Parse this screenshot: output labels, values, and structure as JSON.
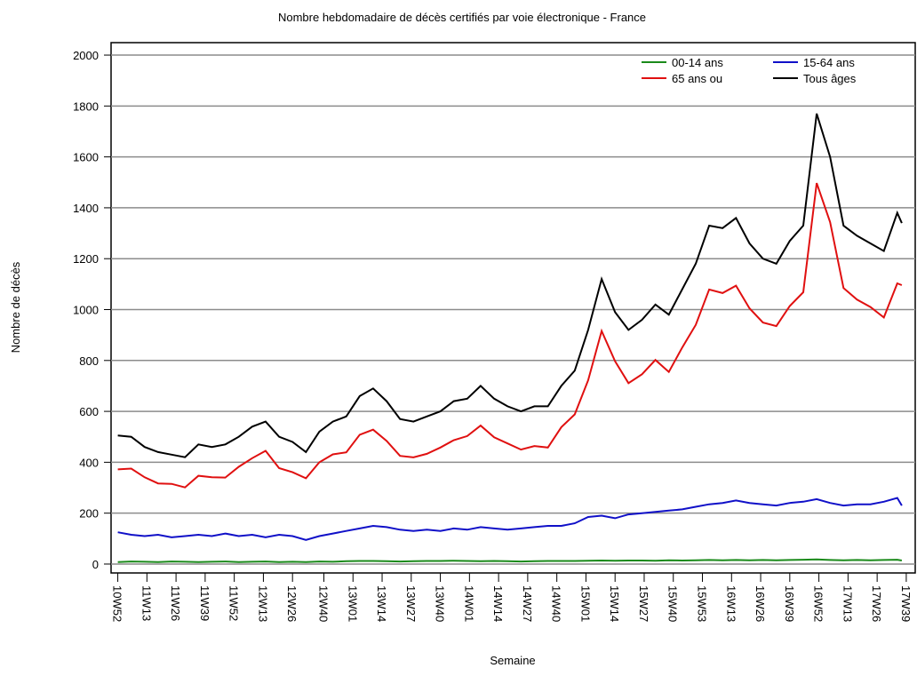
{
  "chart_data": {
    "type": "line",
    "title": "Nombre hebdomadaire de décès certifiés par voie électronique - France",
    "x_label": "Semaine",
    "y_label": "Nombre de décès",
    "x": [
      0,
      6,
      12,
      18,
      24,
      30,
      36,
      42,
      48,
      54,
      60,
      66,
      72,
      78,
      84,
      90,
      96,
      102,
      108,
      114,
      120,
      126,
      132,
      138,
      144,
      150,
      156,
      162,
      168,
      174,
      180,
      186,
      192,
      198,
      204,
      210,
      216,
      222,
      228,
      234,
      240,
      246,
      252,
      258,
      264,
      270,
      276,
      282,
      288,
      294,
      300,
      306,
      312,
      318,
      324,
      330,
      336,
      342,
      348,
      350
    ],
    "series": [
      {
        "name": "00-14 ans",
        "color": "#1a8a1a",
        "values": [
          8,
          10,
          9,
          8,
          10,
          9,
          8,
          9,
          10,
          8,
          9,
          10,
          8,
          9,
          8,
          10,
          9,
          11,
          12,
          12,
          11,
          10,
          11,
          12,
          12,
          13,
          12,
          11,
          12,
          11,
          10,
          11,
          12,
          12,
          12,
          13,
          14,
          13,
          14,
          14,
          13,
          15,
          14,
          15,
          16,
          15,
          16,
          15,
          16,
          15,
          16,
          17,
          18,
          16,
          15,
          16,
          15,
          16,
          17,
          14
        ]
      },
      {
        "name": "15-64 ans",
        "color": "#1010c8",
        "values": [
          125,
          115,
          110,
          115,
          105,
          110,
          115,
          110,
          120,
          110,
          115,
          105,
          115,
          110,
          95,
          110,
          120,
          130,
          140,
          150,
          145,
          135,
          130,
          135,
          130,
          140,
          135,
          145,
          140,
          135,
          140,
          145,
          150,
          150,
          160,
          185,
          190,
          180,
          195,
          200,
          205,
          210,
          215,
          225,
          235,
          240,
          250,
          240,
          235,
          230,
          240,
          245,
          255,
          240,
          230,
          235,
          235,
          245,
          260,
          230
        ]
      },
      {
        "name": "65 ans ou",
        "color": "#e01010",
        "values": [
          372,
          375,
          341,
          317,
          315,
          301,
          347,
          341,
          340,
          382,
          416,
          445,
          377,
          361,
          337,
          400,
          431,
          439,
          508,
          528,
          484,
          425,
          419,
          433,
          458,
          487,
          503,
          544,
          498,
          474,
          450,
          464,
          458,
          538,
          588,
          722,
          916,
          797,
          711,
          746,
          802,
          755,
          851,
          940,
          1079,
          1065,
          1094,
          1005,
          949,
          935,
          1014,
          1068,
          1497,
          1344,
          1085,
          1039,
          1010,
          969,
          1103,
          1096
        ]
      },
      {
        "name": "Tous âges",
        "color": "#000000",
        "values": [
          505,
          500,
          460,
          440,
          430,
          420,
          470,
          460,
          470,
          500,
          540,
          560,
          500,
          480,
          440,
          520,
          560,
          580,
          660,
          690,
          640,
          570,
          560,
          580,
          600,
          640,
          650,
          700,
          650,
          620,
          600,
          620,
          620,
          700,
          760,
          920,
          1120,
          990,
          920,
          960,
          1020,
          980,
          1080,
          1180,
          1330,
          1320,
          1360,
          1260,
          1200,
          1180,
          1270,
          1330,
          1770,
          1600,
          1330,
          1290,
          1260,
          1230,
          1380,
          1340
        ]
      }
    ],
    "xlim": [
      -3,
      356
    ],
    "xticks": [
      {
        "value": 0,
        "label": "10W52"
      },
      {
        "value": 13,
        "label": "11W13"
      },
      {
        "value": 26,
        "label": "11W26"
      },
      {
        "value": 39,
        "label": "11W39"
      },
      {
        "value": 52,
        "label": "11W52"
      },
      {
        "value": 65,
        "label": "12W13"
      },
      {
        "value": 78,
        "label": "12W26"
      },
      {
        "value": 92,
        "label": "12W40"
      },
      {
        "value": 105,
        "label": "13W01"
      },
      {
        "value": 118,
        "label": "13W14"
      },
      {
        "value": 131,
        "label": "13W27"
      },
      {
        "value": 144,
        "label": "13W40"
      },
      {
        "value": 157,
        "label": "14W01"
      },
      {
        "value": 170,
        "label": "14W14"
      },
      {
        "value": 183,
        "label": "14W27"
      },
      {
        "value": 196,
        "label": "14W40"
      },
      {
        "value": 209,
        "label": "15W01"
      },
      {
        "value": 222,
        "label": "15W14"
      },
      {
        "value": 235,
        "label": "15W27"
      },
      {
        "value": 248,
        "label": "15W40"
      },
      {
        "value": 261,
        "label": "15W53"
      },
      {
        "value": 274,
        "label": "16W13"
      },
      {
        "value": 287,
        "label": "16W26"
      },
      {
        "value": 300,
        "label": "16W39"
      },
      {
        "value": 313,
        "label": "16W52"
      },
      {
        "value": 326,
        "label": "17W13"
      },
      {
        "value": 339,
        "label": "17W26"
      },
      {
        "value": 352,
        "label": "17W39"
      }
    ],
    "ylim": [
      -35,
      2049
    ],
    "yticks": [
      0,
      200,
      400,
      600,
      800,
      1000,
      1200,
      1400,
      1600,
      1800,
      2000
    ],
    "grid": true,
    "legend": "upper right"
  }
}
